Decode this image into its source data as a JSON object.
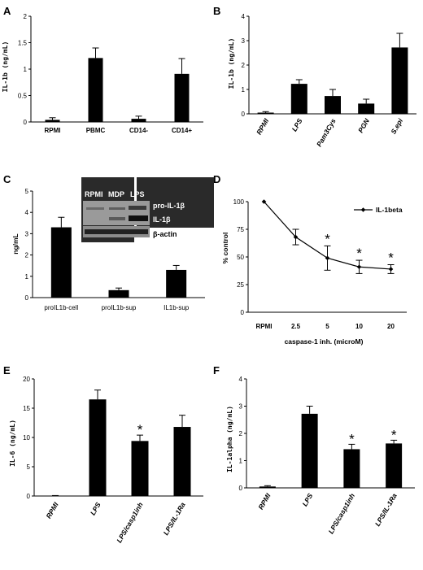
{
  "panels": [
    {
      "letter": "A",
      "chart_data": {
        "type": "bar",
        "categories": [
          "RPMI",
          "PBMC",
          "CD14-",
          "CD14+"
        ],
        "values": [
          0.04,
          1.21,
          0.06,
          0.91
        ],
        "errors": [
          0.04,
          0.19,
          0.05,
          0.29
        ],
        "ylabel": "IL-1b (ng/mL)",
        "ylim": [
          0,
          2
        ],
        "yticks": [
          "0",
          "0.5",
          "1",
          "1.5",
          "2"
        ],
        "tick_style": "upright",
        "significant": [
          false,
          false,
          false,
          false
        ]
      }
    },
    {
      "letter": "B",
      "chart_data": {
        "type": "bar",
        "categories": [
          "RPMI",
          "LPS",
          "Pam3Cys",
          "PGN",
          "S.epi"
        ],
        "values": [
          0.05,
          1.23,
          0.73,
          0.42,
          2.72
        ],
        "errors": [
          0.04,
          0.17,
          0.27,
          0.18,
          0.58
        ],
        "ylabel": "IL-1b (ng/mL)",
        "ylim": [
          0,
          4
        ],
        "yticks": [
          "0",
          "1",
          "2",
          "3",
          "4"
        ],
        "tick_style": "rotated",
        "significant": [
          false,
          false,
          false,
          false,
          false
        ]
      }
    },
    {
      "letter": "C",
      "chart_data": {
        "type": "bar",
        "categories": [
          "proIL1b-cell",
          "proIL1b-sup",
          "IL1b-sup"
        ],
        "values": [
          3.3,
          0.35,
          1.3
        ],
        "errors": [
          0.47,
          0.1,
          0.21
        ],
        "ylabel": "ng/mL",
        "ylim": [
          0,
          5
        ],
        "yticks": [
          "0",
          "1",
          "2",
          "3",
          "4",
          "5"
        ],
        "tick_style": "upright-small",
        "significant": [
          false,
          false,
          false
        ]
      },
      "blot": {
        "lanes": [
          "RPMI",
          "MDP",
          "LPS"
        ],
        "bands": [
          "pro-IL-1β",
          "IL-1β",
          "β-actin"
        ]
      }
    },
    {
      "letter": "D",
      "chart_data": {
        "type": "line",
        "categories": [
          "RPMI",
          "2.5",
          "5",
          "10",
          "20"
        ],
        "values": [
          100,
          68,
          49,
          41,
          39
        ],
        "errors": [
          0,
          7,
          11,
          6,
          4
        ],
        "xlabel": "caspase-1 inh. (microM)",
        "ylabel": "% control",
        "ylim": [
          0,
          100
        ],
        "yticks": [
          "0",
          "25",
          "50",
          "75",
          "100"
        ],
        "legend": "IL-1beta",
        "legend_position": "top-right",
        "significant": [
          false,
          false,
          true,
          true,
          true
        ]
      }
    },
    {
      "letter": "E",
      "chart_data": {
        "type": "bar",
        "categories": [
          "RPMI",
          "LPS",
          "LPS/casp1inh",
          "LPS/IL-1Ra"
        ],
        "values": [
          0.05,
          16.5,
          9.4,
          11.8
        ],
        "errors": [
          0.03,
          1.6,
          1.0,
          2.0
        ],
        "ylabel": "IL-6 (ng/mL)",
        "ylim": [
          0,
          20
        ],
        "yticks": [
          "0",
          "5",
          "10",
          "15",
          "20"
        ],
        "tick_style": "rotated",
        "significant": [
          false,
          false,
          true,
          false
        ]
      }
    },
    {
      "letter": "F",
      "chart_data": {
        "type": "bar",
        "categories": [
          "RPMI",
          "LPS",
          "LPS/casp1inh",
          "LPS/IL-1Ra"
        ],
        "values": [
          0.05,
          2.72,
          1.42,
          1.63
        ],
        "errors": [
          0.03,
          0.28,
          0.18,
          0.12
        ],
        "ylabel": "IL-1alpha (ng/mL)",
        "ylim": [
          0,
          4
        ],
        "yticks": [
          "0",
          "1",
          "2",
          "3",
          "4"
        ],
        "tick_style": "rotated",
        "significant": [
          false,
          false,
          true,
          true
        ]
      }
    }
  ],
  "star_symbol": "*"
}
